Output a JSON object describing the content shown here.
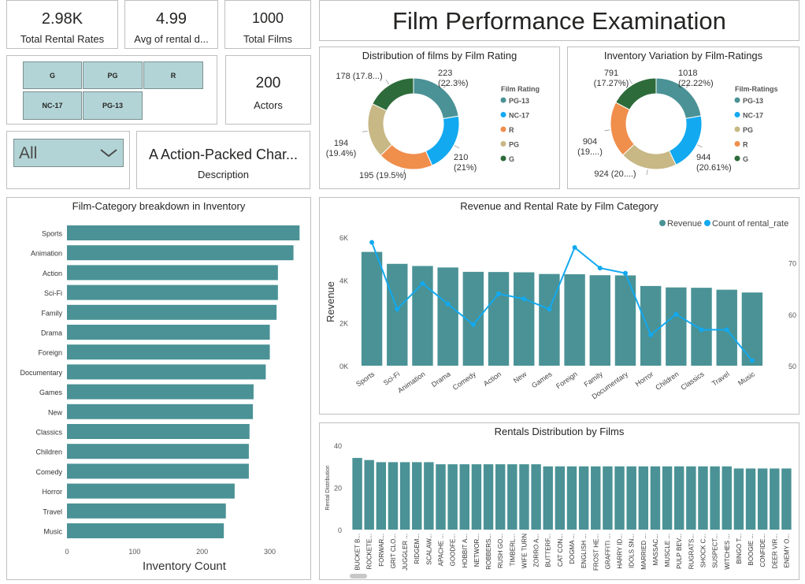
{
  "colors": {
    "teal": "#4a9295",
    "blue": "#12a9f0",
    "orange": "#f08e4c",
    "khaki": "#c7b885",
    "green": "#2e6b3a",
    "tile": "#b3d4d6"
  },
  "cards": {
    "total_rental_rates": {
      "value": "2.98K",
      "label": "Total Rental Rates"
    },
    "avg_rental": {
      "value": "4.99",
      "label": "Avg of rental d..."
    },
    "total_films": {
      "value": "1000",
      "label": "Total Films"
    },
    "actors": {
      "value": "200",
      "label": "Actors"
    },
    "description": {
      "value": "A Action-Packed Char...",
      "label": "Description"
    }
  },
  "page_title": "Film Performance Examination",
  "rating_slicer": {
    "items": [
      "G",
      "PG",
      "R",
      "NC-17",
      "PG-13"
    ]
  },
  "category_dropdown": {
    "value": "All",
    "icon": "chevron-down-icon"
  },
  "donut1": {
    "title": "Distribution of films by Film Rating",
    "legend_title": "Film Rating",
    "slices": [
      {
        "name": "PG-13",
        "value": 223,
        "label": "223\n(22.3%)",
        "color": "#4a9295"
      },
      {
        "name": "NC-17",
        "value": 210,
        "label": "210\n(21%)",
        "color": "#12a9f0"
      },
      {
        "name": "R",
        "value": 195,
        "label": "195 (19.5%)",
        "color": "#f08e4c"
      },
      {
        "name": "PG",
        "value": 194,
        "label": "194\n(19.4%)",
        "color": "#c7b885"
      },
      {
        "name": "G",
        "value": 178,
        "label": "178 (17.8...)",
        "color": "#2e6b3a"
      }
    ]
  },
  "donut2": {
    "title": "Inventory Variation by Film-Ratings",
    "legend_title": "Film-Ratings",
    "slices": [
      {
        "name": "PG-13",
        "value": 1018,
        "label": "1018\n(22.22%)",
        "color": "#4a9295"
      },
      {
        "name": "NC-17",
        "value": 944,
        "label": "944\n(20.61%)",
        "color": "#12a9f0"
      },
      {
        "name": "PG",
        "value": 924,
        "label": "924 (20....)",
        "color": "#c7b885"
      },
      {
        "name": "R",
        "value": 904,
        "label": "904\n(19....)",
        "color": "#f08e4c"
      },
      {
        "name": "G",
        "value": 791,
        "label": "791\n(17.27%)",
        "color": "#2e6b3a"
      }
    ]
  },
  "category_bars": {
    "title": "Film-Category breakdown in Inventory",
    "xlabel": "Inventory Count",
    "categories": [
      "Sports",
      "Animation",
      "Action",
      "Sci-Fi",
      "Family",
      "Drama",
      "Foreign",
      "Documentary",
      "Games",
      "New",
      "Classics",
      "Children",
      "Comedy",
      "Horror",
      "Travel",
      "Music"
    ],
    "values": [
      344,
      335,
      312,
      312,
      310,
      300,
      300,
      294,
      276,
      275,
      270,
      269,
      269,
      248,
      235,
      232
    ],
    "ticks": [
      "0",
      "100",
      "200",
      "300"
    ],
    "xlim": [
      0,
      350
    ]
  },
  "revenue_chart": {
    "title": "Revenue and Rental Rate by Film Category",
    "ylabel": "Revenue",
    "legend": [
      "Revenue",
      "Count of rental_rate"
    ],
    "categories": [
      "Sports",
      "Sci-Fi",
      "Animation",
      "Drama",
      "Comedy",
      "Action",
      "New",
      "Games",
      "Foreign",
      "Family",
      "Documentary",
      "Horror",
      "Children",
      "Classics",
      "Travel",
      "Music"
    ],
    "revenue": [
      5314,
      4757,
      4656,
      4587,
      4384,
      4375,
      4361,
      4282,
      4270,
      4226,
      4217,
      3722,
      3655,
      3639,
      3549,
      3418
    ],
    "rental_count": [
      74,
      61,
      66,
      62,
      58,
      64,
      63,
      61,
      73,
      69,
      68,
      56,
      60,
      57,
      57,
      51
    ],
    "left_ticks": [
      "0K",
      "2K",
      "4K",
      "6K"
    ],
    "right_ticks": [
      "50",
      "60",
      "70"
    ],
    "ylim_left": [
      0,
      6000
    ],
    "ylim_right": [
      50,
      75
    ]
  },
  "rentals_chart": {
    "title": "Rentals Distribution by Films",
    "ylabel": "Rental Distribution",
    "ticks": [
      "0",
      "20",
      "40"
    ],
    "ylim": [
      0,
      40
    ],
    "films": [
      "BUCKET B...",
      "ROCKETE...",
      "FORWAR...",
      "GRIT CLO...",
      "JUGGLER ...",
      "RIDGEM...",
      "SCALAW...",
      "APACHE ...",
      "GOODFE...",
      "HOBBIT A...",
      "NETWOR...",
      "ROBBERS...",
      "RUSH GO...",
      "TIMBERL...",
      "WIFE TURN",
      "ZORRO A...",
      "BUTTERF...",
      "CAT CON...",
      "DOGMA ...",
      "ENGLISH ...",
      "FROST HE...",
      "GRAFFITI ...",
      "HARRY ID...",
      "IDOLS SN...",
      "MARRIED ...",
      "MASSAC...",
      "MUSCLE ...",
      "PULP BEV...",
      "RUGRATS...",
      "SHOCK C...",
      "SUSPECT...",
      "WITCHES ...",
      "BINGO T...",
      "BOOGIE ...",
      "CONFIDE...",
      "DEER VIR...",
      "ENEMY O..."
    ],
    "values": [
      34,
      33,
      32,
      32,
      32,
      32,
      32,
      31,
      31,
      31,
      31,
      31,
      31,
      31,
      31,
      31,
      30,
      30,
      30,
      30,
      30,
      30,
      30,
      30,
      30,
      30,
      30,
      30,
      30,
      30,
      30,
      30,
      29,
      29,
      29,
      29,
      29
    ]
  }
}
